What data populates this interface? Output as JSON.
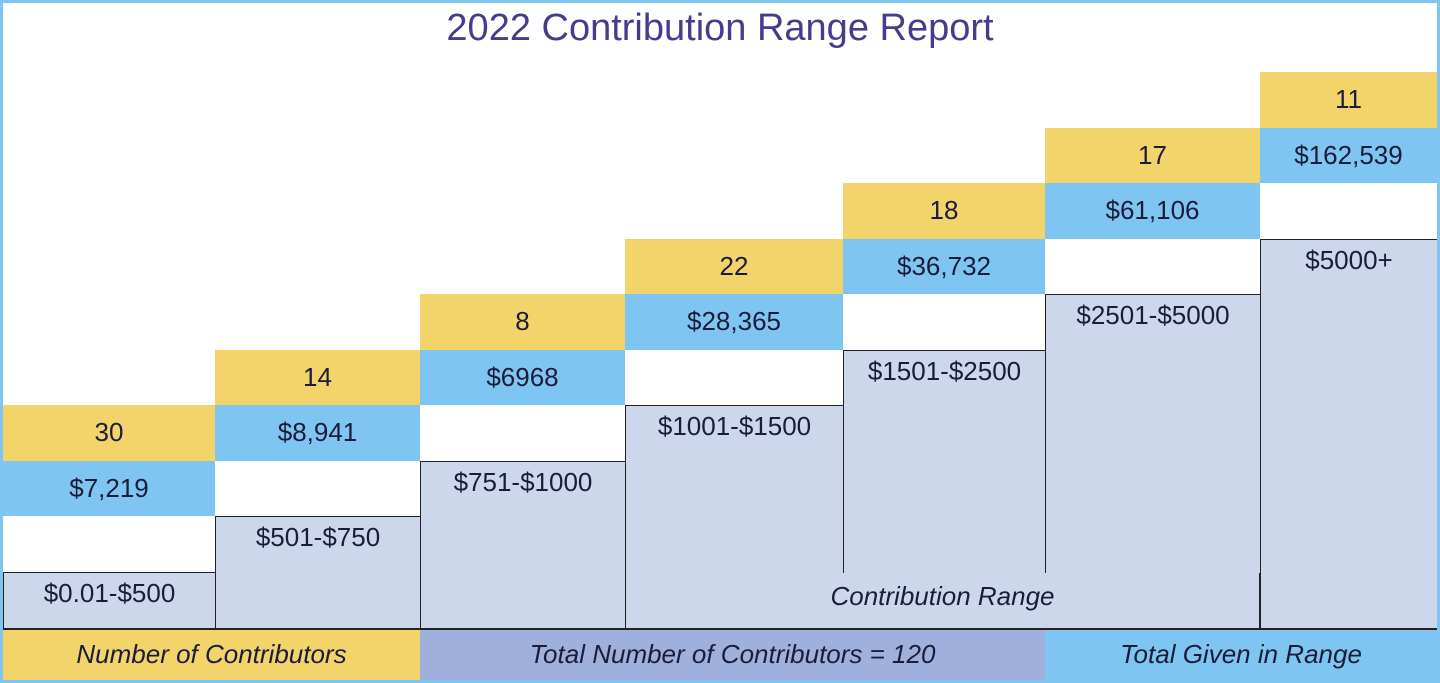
{
  "title": "2022 Contribution Range Report",
  "columns": [
    {
      "range": "$0.01-$500",
      "count": "30",
      "total": "$7,219"
    },
    {
      "range": "$501-$750",
      "count": "14",
      "total": "$8,941"
    },
    {
      "range": "$751-$1000",
      "count": "8",
      "total": "$6968"
    },
    {
      "range": "$1001-$1500",
      "count": "22",
      "total": "$28,365"
    },
    {
      "range": "$1501-$2500",
      "count": "18",
      "total": "$36,732"
    },
    {
      "range": "$2501-$5000",
      "count": "17",
      "total": "$61,106"
    },
    {
      "range": "$5000+",
      "count": "11",
      "total": "$162,539"
    }
  ],
  "axis_label": "Contribution Range",
  "footer": {
    "count_label": "Number of Contributors",
    "summary": "Total Number of Contributors = 120",
    "total_label": "Total Given in Range"
  }
}
